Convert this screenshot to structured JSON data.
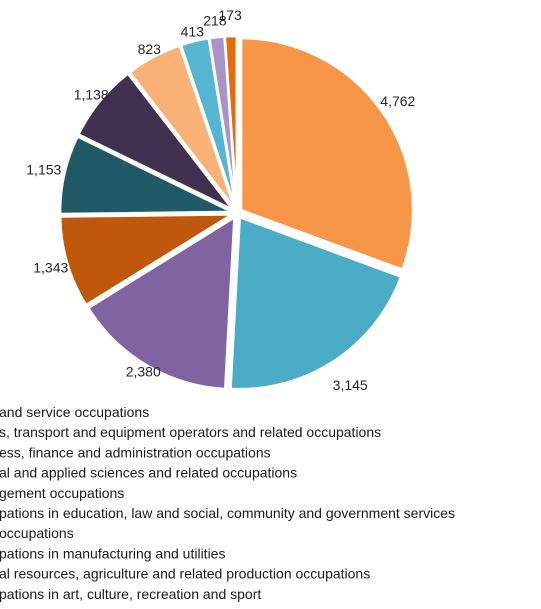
{
  "chart_data": {
    "type": "pie",
    "title": "",
    "categories": [
      "Sales and service occupations",
      "Trades, transport and equipment operators and related occupations",
      "Business, finance and administration occupations",
      "Natural and applied sciences and related occupations",
      "Management occupations",
      "Occupations in education, law and social, community and government services",
      "Health occupations",
      "Occupations in manufacturing and utilities",
      "Natural resources, agriculture and related production occupations",
      "Occupations in art, culture, recreation and sport"
    ],
    "values": [
      4762,
      3145,
      2380,
      1343,
      1153,
      1138,
      823,
      413,
      218,
      173
    ],
    "value_labels": [
      "4,762",
      "3,145",
      "2,380",
      "1,343",
      "1,153",
      "1,138",
      "823",
      "413",
      "218",
      "173"
    ],
    "legend_visible_text": [
      "and service occupations",
      "s, transport and equipment operators and related occupations",
      "ess, finance and administration occupations",
      "al and applied sciences and related occupations",
      "gement occupations",
      "pations in education, law and social, community and government services",
      "occupations",
      "pations in manufacturing and utilities",
      "al resources, agriculture and related production occupations",
      "pations in art, culture, recreation and sport"
    ],
    "colors": [
      "#F79646",
      "#4BACC6",
      "#8064A2",
      "#C0580B",
      "#215967",
      "#403151",
      "#FAB175",
      "#56B6D1",
      "#A993C9",
      "#E46C0A"
    ],
    "legend_placement": "bottom",
    "start_angle_deg": 0,
    "direction": "clockwise"
  }
}
